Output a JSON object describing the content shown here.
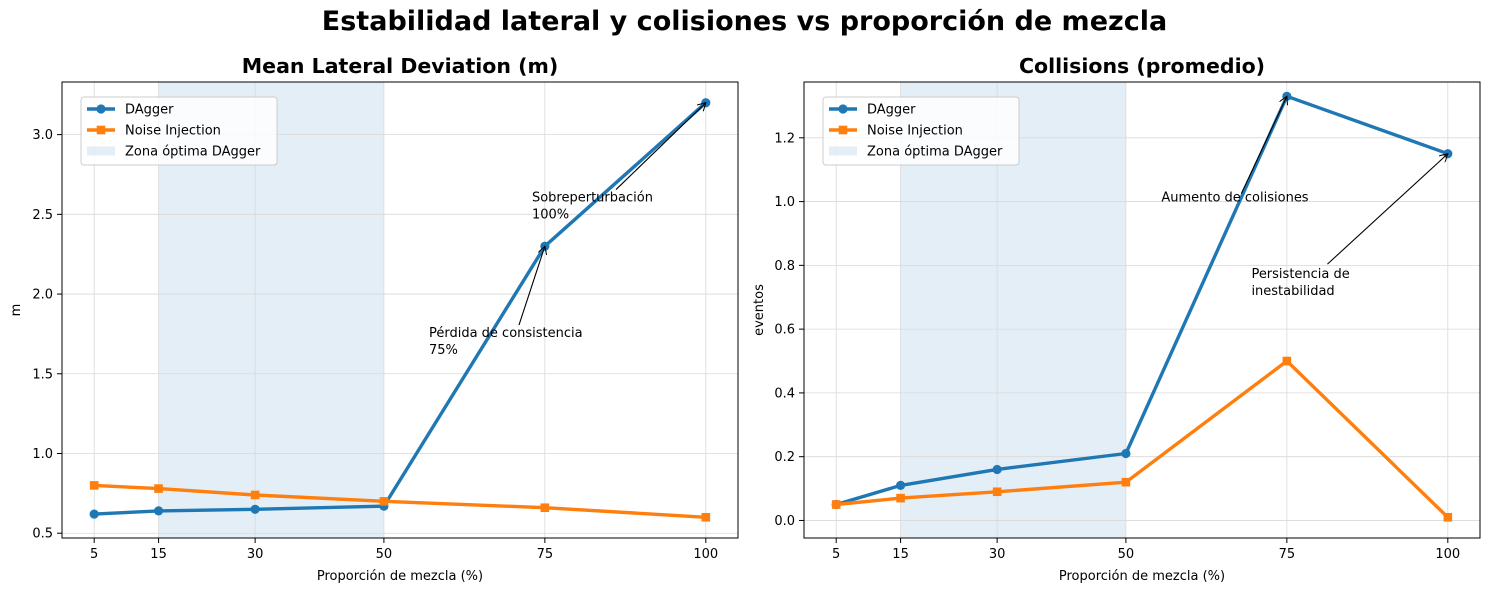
{
  "suptitle": "Estabilidad lateral y colisiones vs proporción de mezcla",
  "colors": {
    "dagger": "#1f77b4",
    "noise": "#ff7f0e",
    "zone": "#1f77b4",
    "grid": "#d9d9d9"
  },
  "chart_data": [
    {
      "type": "line",
      "title": "Mean Lateral Deviation (m)",
      "xlabel": "Proporción de mezcla (%)",
      "ylabel": "m",
      "x": [
        5,
        15,
        30,
        50,
        75,
        100
      ],
      "xticks": [
        "5",
        "15",
        "30",
        "50",
        "75",
        "100"
      ],
      "yticks": [
        "0.5",
        "1.0",
        "1.5",
        "2.0",
        "2.5",
        "3.0"
      ],
      "yticks_values": [
        0.5,
        1.0,
        1.5,
        2.0,
        2.5,
        3.0
      ],
      "xlim": [
        0,
        105
      ],
      "ylim": [
        0.47,
        3.33
      ],
      "grid": true,
      "legend_position": "upper-left",
      "series": [
        {
          "name": "DAgger",
          "values": [
            0.62,
            0.64,
            0.65,
            0.67,
            2.3,
            3.2
          ],
          "marker": "circle",
          "color": "#1f77b4"
        },
        {
          "name": "Noise Injection",
          "values": [
            0.8,
            0.78,
            0.74,
            0.7,
            0.66,
            0.6
          ],
          "marker": "square",
          "color": "#ff7f0e"
        }
      ],
      "shaded_region": {
        "name": "Zona óptima DAgger",
        "x": [
          15,
          50
        ]
      },
      "annotations": [
        {
          "lines": [
            "Pérdida de consistencia",
            "75%"
          ],
          "point": [
            75,
            2.3
          ],
          "text_at": [
            57,
            1.73
          ]
        },
        {
          "lines": [
            "Sobreperturbación",
            "100%"
          ],
          "point": [
            100,
            3.2
          ],
          "text_at": [
            73,
            2.58
          ]
        }
      ]
    },
    {
      "type": "line",
      "title": "Collisions (promedio)",
      "xlabel": "Proporción de mezcla (%)",
      "ylabel": "eventos",
      "x": [
        5,
        15,
        30,
        50,
        75,
        100
      ],
      "xticks": [
        "5",
        "15",
        "30",
        "50",
        "75",
        "100"
      ],
      "yticks": [
        "0.0",
        "0.2",
        "0.4",
        "0.6",
        "0.8",
        "1.0",
        "1.2"
      ],
      "yticks_values": [
        0.0,
        0.2,
        0.4,
        0.6,
        0.8,
        1.0,
        1.2
      ],
      "xlim": [
        0,
        105
      ],
      "ylim": [
        -0.055,
        1.375
      ],
      "grid": true,
      "legend_position": "upper-left",
      "series": [
        {
          "name": "DAgger",
          "values": [
            0.05,
            0.11,
            0.16,
            0.21,
            1.33,
            1.15
          ],
          "marker": "circle",
          "color": "#1f77b4"
        },
        {
          "name": "Noise Injection",
          "values": [
            0.05,
            0.07,
            0.09,
            0.12,
            0.5,
            0.01
          ],
          "marker": "square",
          "color": "#ff7f0e"
        }
      ],
      "shaded_region": {
        "name": "Zona óptima DAgger",
        "x": [
          15,
          50
        ]
      },
      "annotations": [
        {
          "lines": [
            "Aumento de colisiones"
          ],
          "point": [
            75,
            1.33
          ],
          "text_at": [
            55.5,
            1.0
          ]
        },
        {
          "lines": [
            "Persistencia de",
            "inestabilidad"
          ],
          "point": [
            100,
            1.15
          ],
          "text_at": [
            69.5,
            0.76
          ]
        }
      ]
    }
  ]
}
